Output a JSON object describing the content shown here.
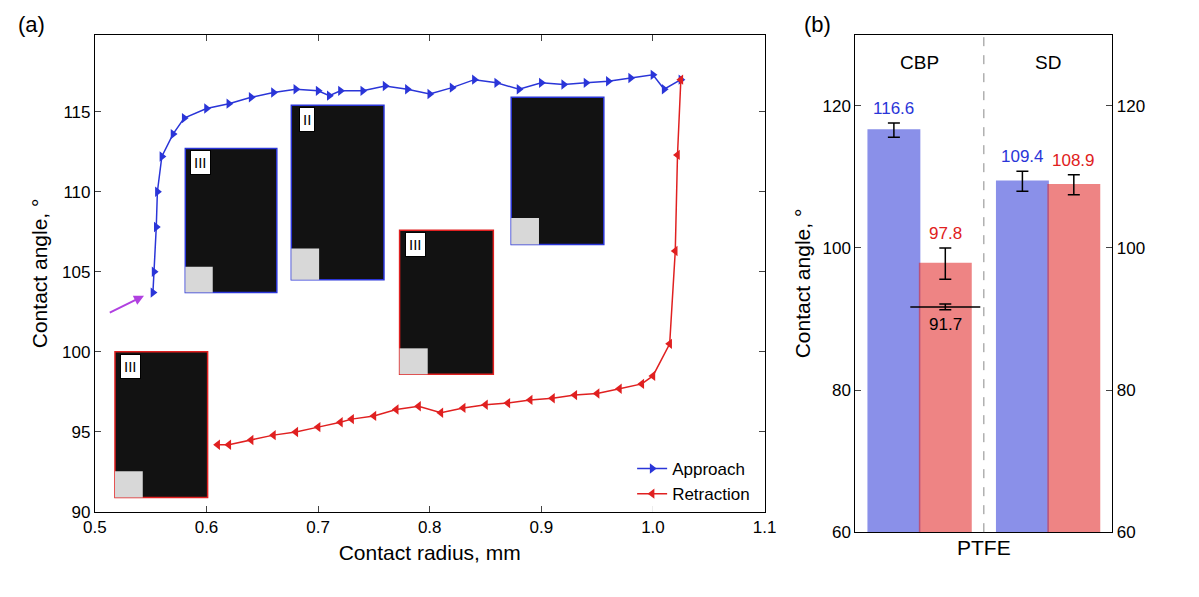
{
  "chart_data": [
    {
      "type": "line",
      "panel_label": "(a)",
      "x_label": "Contact radius, mm",
      "y_label": "Contact angle, °",
      "xlim": [
        0.5,
        1.1
      ],
      "xticks": [
        0.5,
        0.6,
        0.7,
        0.8,
        0.9,
        {
          "value": 1,
          "label": "1.0"
        },
        1.1
      ],
      "ylim": [
        90,
        119.8
      ],
      "yticks": [
        90,
        95,
        100,
        105,
        110,
        115
      ],
      "legend": "lower right",
      "annotations": [
        "III",
        "II",
        "III",
        "III"
      ],
      "series": [
        {
          "name": "Approach",
          "color": "#2a35d8",
          "marker": "triangle-right",
          "x": [
            0.552,
            0.553,
            0.555,
            0.556,
            0.56,
            0.57,
            0.58,
            0.6,
            0.62,
            0.64,
            0.66,
            0.68,
            0.7,
            0.71,
            0.72,
            0.74,
            0.76,
            0.78,
            0.8,
            0.82,
            0.84,
            0.86,
            0.88,
            0.9,
            0.92,
            0.94,
            0.96,
            0.98,
            1.0,
            1.01,
            1.025
          ],
          "values": [
            103.7,
            105.0,
            107.8,
            110.0,
            112.2,
            113.6,
            114.6,
            115.2,
            115.5,
            115.9,
            116.2,
            116.4,
            116.3,
            116.0,
            116.3,
            116.3,
            116.6,
            116.4,
            116.1,
            116.5,
            117.0,
            116.8,
            116.4,
            116.8,
            116.7,
            116.8,
            116.9,
            117.1,
            117.3,
            116.4,
            117.0
          ]
        },
        {
          "name": "Retraction",
          "color": "#e02020",
          "marker": "triangle-left",
          "x": [
            1.025,
            1.022,
            1.02,
            1.015,
            1.0,
            0.99,
            0.97,
            0.95,
            0.93,
            0.91,
            0.89,
            0.87,
            0.85,
            0.83,
            0.81,
            0.79,
            0.77,
            0.75,
            0.73,
            0.72,
            0.7,
            0.68,
            0.66,
            0.64,
            0.62,
            0.61
          ],
          "values": [
            117.0,
            112.3,
            106.3,
            100.5,
            98.5,
            98.0,
            97.7,
            97.4,
            97.3,
            97.1,
            97.0,
            96.8,
            96.7,
            96.5,
            96.2,
            96.6,
            96.4,
            96.0,
            95.8,
            95.6,
            95.3,
            95.0,
            94.8,
            94.5,
            94.2,
            94.2
          ]
        }
      ]
    },
    {
      "type": "bar",
      "panel_label": "(b)",
      "x_label": "PTFE",
      "y_label": "Contact angle, °",
      "categories": [
        "CBP",
        "SD"
      ],
      "ylim": [
        60,
        130
      ],
      "yticks": [
        60,
        80,
        100,
        120
      ],
      "data_labels": true,
      "series": [
        {
          "color": "#2a35d8",
          "values": [
            116.6,
            109.4
          ],
          "error": [
            1.0,
            1.4
          ]
        },
        {
          "color": "#e02020",
          "values": [
            97.8,
            108.9
          ],
          "error": [
            2.2,
            1.4
          ]
        },
        {
          "type": "level",
          "color": "#000000",
          "values": [
            91.7,
            null
          ],
          "error": [
            0.4,
            null
          ]
        }
      ]
    }
  ]
}
